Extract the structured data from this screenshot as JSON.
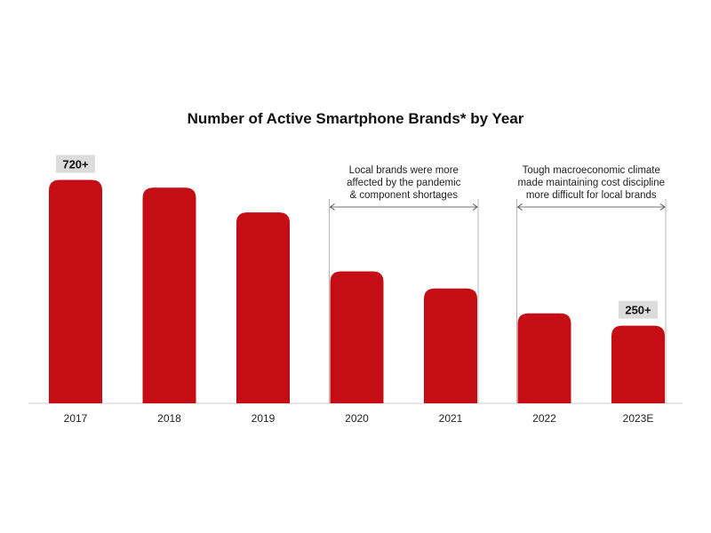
{
  "chart_data": {
    "type": "bar",
    "title": "Number of Active Smartphone Brands* by Year",
    "categories": [
      "2017",
      "2018",
      "2019",
      "2020",
      "2021",
      "2022",
      "2023E"
    ],
    "values": [
      720,
      695,
      615,
      425,
      370,
      290,
      250
    ],
    "ylim": [
      0,
      750
    ],
    "grid": false,
    "bar_color": "#c40d15",
    "callouts": [
      {
        "category_index": 0,
        "label": "720+"
      },
      {
        "category_index": 6,
        "label": "250+"
      }
    ],
    "annotations": [
      {
        "from_index": 3,
        "to_index": 4,
        "lines": [
          "Local brands were more",
          "affected by the pandemic",
          "& component shortages"
        ]
      },
      {
        "from_index": 5,
        "to_index": 6,
        "lines": [
          "Tough macroeconomic climate",
          "made maintaining cost discipline",
          "more difficult for local brands"
        ]
      }
    ]
  }
}
